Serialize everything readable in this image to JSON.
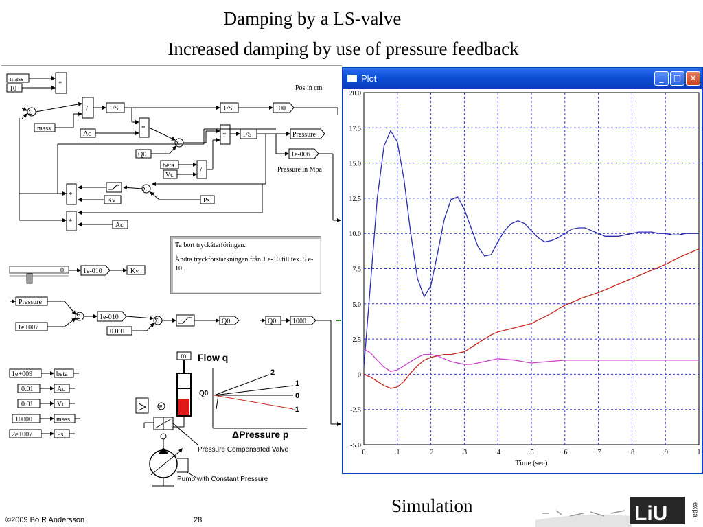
{
  "slide": {
    "title_line1": "Damping by a LS-valve",
    "title_line2": "Increased damping by use of pressure feedback",
    "footer_caption": "Simulation",
    "copyright": "©2009 Bo  R Andersson",
    "page_number": "28",
    "logo_text": "LiU",
    "logo_side_text": "expa"
  },
  "model": {
    "blocks": {
      "mass_top": "mass",
      "const_10": "10",
      "mult": "*",
      "sum": "Σ",
      "divide": "/",
      "integrator": "1/S",
      "mass_mid": "mass",
      "ac": "Ac",
      "gain_100": "100",
      "pressure_out": "Pressure",
      "gain_1e006": "1e-006",
      "q0": "Q0",
      "beta": "beta",
      "vc": "Vc",
      "kv": "Kv",
      "ps": "Ps",
      "slider_value": "0",
      "gain_1e010": "1e-010",
      "kv_out": "Kv",
      "pressure_in": "Pressure",
      "const_1e007": "1e+007",
      "gain_1e010_b": "1e-010",
      "const_0001": "0.001",
      "q0_out": "Q0",
      "q0_in": "Q0",
      "gain_1000": "1000",
      "p_beta_val": "1e+009",
      "p_beta": "beta",
      "p_ac_val": "0.01",
      "p_ac": "Ac",
      "p_vc_val": "0.01",
      "p_vc": "Vc",
      "p_mass_val": "10000",
      "p_mass": "mass",
      "p_ps_val": "2e+007",
      "p_ps": "Ps"
    },
    "labels": {
      "pos_in_cm": "Pos in cm",
      "pressure_in_mpa": "Pressure in Mpa"
    },
    "note": {
      "line1": "Ta bort tryckåterföringen.",
      "line2": "Ändra tryckförstärkningen från 1 e-10 till tex. 5 e-10."
    },
    "schematic": {
      "flow_label": "Flow q",
      "m_label": "m",
      "q0_label": "Q0",
      "pressure_axis": "ΔPressure p",
      "curve_labels": [
        "2",
        "1",
        "0",
        "-1"
      ],
      "valve_caption": "Pressure  Compensated Valve",
      "pump_caption": "Pump with Constant Pressure",
      "p_symbol": "P"
    }
  },
  "plot_window": {
    "title": "Plot",
    "min_glyph": "_",
    "max_glyph": "□",
    "close_glyph": "✕"
  },
  "chart_data": {
    "type": "line",
    "title": "",
    "xlabel": "Time (sec)",
    "ylabel": "",
    "xlim": [
      0,
      1
    ],
    "ylim": [
      -5,
      20
    ],
    "x_ticks": [
      "0",
      ".1",
      ".2",
      ".3",
      ".4",
      ".5",
      ".6",
      ".7",
      ".8",
      ".9",
      "1"
    ],
    "y_ticks": [
      "-5.0",
      "-2.5",
      "0",
      "2.5",
      "5.0",
      "7.5",
      "10.0",
      "12.5",
      "15.0",
      "17.5",
      "20.0"
    ],
    "grid": true,
    "colors": {
      "blue": "#2b2bb0",
      "red": "#c8281e",
      "magenta": "#c840c8",
      "grid": "#3333dd"
    },
    "series": [
      {
        "color": "blue",
        "x": [
          0,
          0.02,
          0.04,
          0.06,
          0.08,
          0.1,
          0.12,
          0.14,
          0.16,
          0.18,
          0.2,
          0.22,
          0.24,
          0.26,
          0.28,
          0.3,
          0.32,
          0.34,
          0.36,
          0.38,
          0.4,
          0.42,
          0.44,
          0.46,
          0.48,
          0.5,
          0.52,
          0.54,
          0.56,
          0.58,
          0.6,
          0.62,
          0.64,
          0.66,
          0.68,
          0.7,
          0.72,
          0.74,
          0.76,
          0.78,
          0.8,
          0.82,
          0.84,
          0.86,
          0.88,
          0.9,
          0.92,
          0.94,
          0.96,
          0.98,
          1.0
        ],
        "y": [
          0.5,
          6.5,
          12.5,
          16.2,
          17.3,
          16.5,
          13.8,
          10.0,
          6.8,
          5.5,
          6.3,
          8.6,
          11.0,
          12.4,
          12.6,
          11.7,
          10.4,
          9.1,
          8.4,
          8.5,
          9.4,
          10.2,
          10.7,
          10.9,
          10.7,
          10.2,
          9.7,
          9.4,
          9.5,
          9.7,
          10.0,
          10.3,
          10.4,
          10.4,
          10.2,
          10.0,
          9.8,
          9.8,
          9.8,
          9.9,
          10.0,
          10.1,
          10.1,
          10.1,
          10.0,
          10.0,
          9.9,
          9.9,
          10.0,
          10.0,
          10.0
        ]
      },
      {
        "color": "red",
        "x": [
          0,
          0.02,
          0.04,
          0.06,
          0.08,
          0.1,
          0.12,
          0.14,
          0.16,
          0.18,
          0.2,
          0.22,
          0.24,
          0.26,
          0.28,
          0.3,
          0.32,
          0.34,
          0.36,
          0.38,
          0.4,
          0.45,
          0.5,
          0.55,
          0.6,
          0.65,
          0.7,
          0.75,
          0.8,
          0.85,
          0.9,
          0.95,
          1.0
        ],
        "y": [
          0,
          -0.2,
          -0.5,
          -0.8,
          -1.0,
          -0.9,
          -0.5,
          0.1,
          0.6,
          1.0,
          1.2,
          1.3,
          1.4,
          1.4,
          1.5,
          1.6,
          1.9,
          2.2,
          2.5,
          2.8,
          3.0,
          3.3,
          3.6,
          4.2,
          4.9,
          5.4,
          5.8,
          6.3,
          6.8,
          7.3,
          7.8,
          8.4,
          8.9
        ]
      },
      {
        "color": "magenta",
        "x": [
          0,
          0.02,
          0.04,
          0.06,
          0.08,
          0.1,
          0.12,
          0.14,
          0.16,
          0.18,
          0.2,
          0.22,
          0.24,
          0.26,
          0.28,
          0.3,
          0.32,
          0.34,
          0.36,
          0.38,
          0.4,
          0.45,
          0.5,
          0.55,
          0.6,
          0.65,
          0.7,
          0.75,
          0.8,
          0.85,
          0.9,
          0.95,
          1.0
        ],
        "y": [
          1.8,
          1.5,
          1.0,
          0.5,
          0.2,
          0.3,
          0.6,
          0.9,
          1.2,
          1.4,
          1.4,
          1.3,
          1.1,
          0.9,
          0.8,
          0.7,
          0.7,
          0.8,
          0.9,
          1.0,
          1.1,
          1.0,
          0.8,
          0.9,
          1.0,
          1.0,
          1.0,
          1.0,
          1.0,
          1.0,
          1.0,
          1.0,
          1.0
        ]
      }
    ]
  }
}
